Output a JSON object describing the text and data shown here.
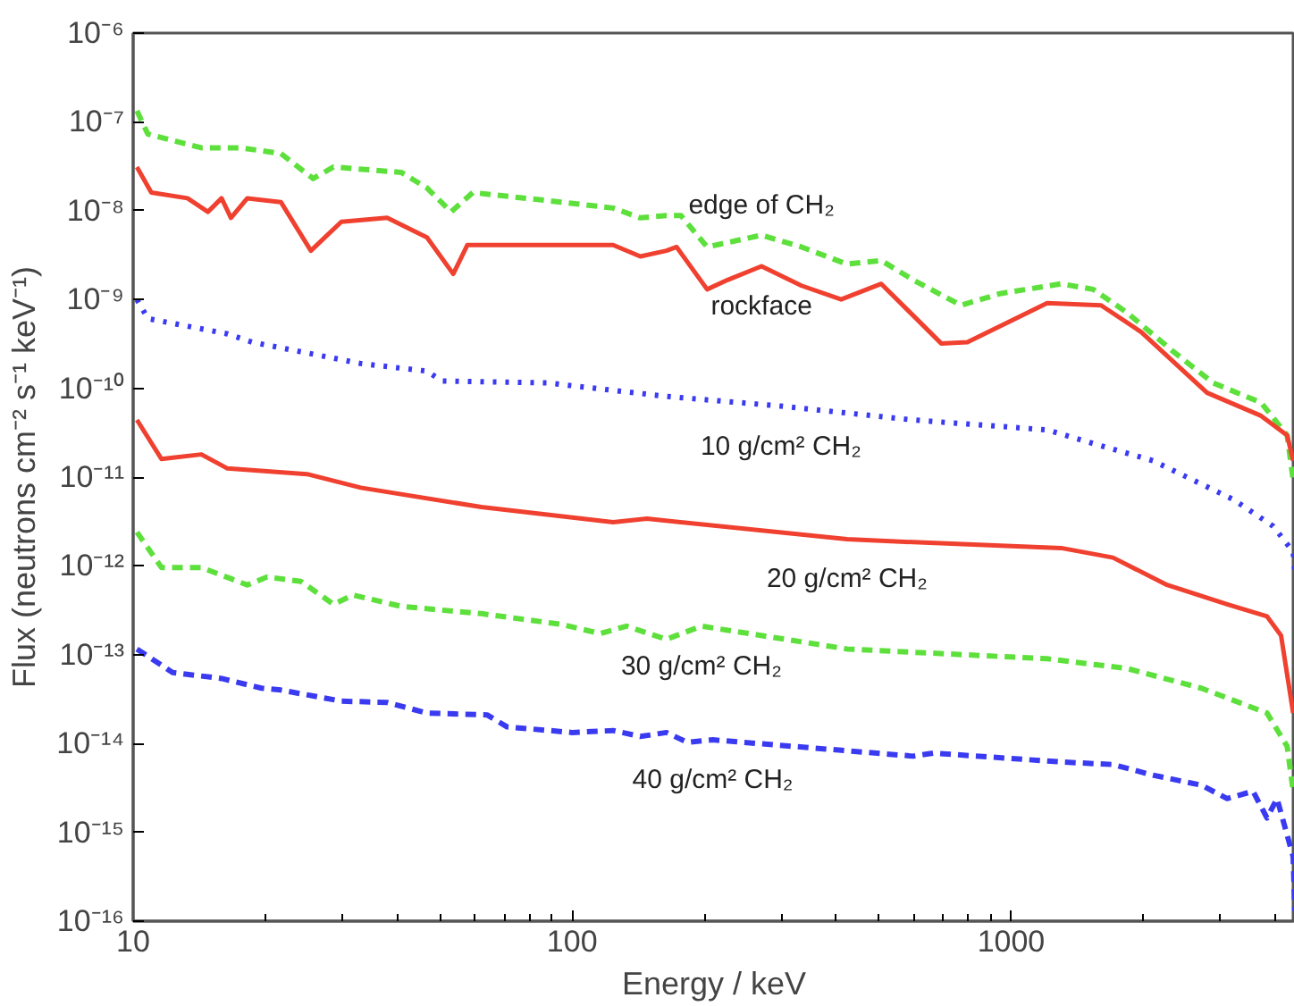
{
  "chart_data": {
    "type": "line",
    "xlabel": "Energy / keV",
    "ylabel": "Flux (neutrons cm⁻² s⁻¹ keV⁻¹)",
    "log": "xy",
    "grid": false,
    "xlim": [
      10,
      4430
    ],
    "xticks": [
      10,
      100,
      1000
    ],
    "ylim": [
      1e-16,
      1e-06
    ],
    "yticks": [
      {
        "value": 1e-06,
        "label": "10⁻⁶"
      },
      {
        "value": 1e-07,
        "label": "10⁻⁷"
      },
      {
        "value": 1e-08,
        "label": "10⁻⁸"
      },
      {
        "value": 1e-09,
        "label": "10⁻⁹"
      },
      {
        "value": 1e-10,
        "label": "10⁻¹⁰"
      },
      {
        "value": 1e-11,
        "label": "10⁻¹¹"
      },
      {
        "value": 1e-12,
        "label": "10⁻¹²"
      },
      {
        "value": 1e-13,
        "label": "10⁻¹³"
      },
      {
        "value": 1e-14,
        "label": "10⁻¹⁴"
      },
      {
        "value": 1e-15,
        "label": "10⁻¹⁵"
      },
      {
        "value": 1e-16,
        "label": "10⁻¹⁶"
      }
    ],
    "series": [
      {
        "name": "edge of CH₂",
        "color": "#5ee03c",
        "line_style": "dashed",
        "x": [
          10.2,
          10.8,
          14.3,
          17.6,
          21.7,
          25.7,
          28.6,
          40.8,
          46.7,
          53,
          59.4,
          94.3,
          124,
          143,
          164,
          177,
          203,
          270,
          333,
          423,
          506,
          598,
          769,
          948,
          1300,
          1538,
          1837,
          2339,
          2884,
          3710,
          4254,
          4390
        ],
        "values": [
          1.33e-07,
          7.3e-08,
          5.1e-08,
          5.1e-08,
          4.4e-08,
          2.3e-08,
          3.1e-08,
          2.7e-08,
          1.8e-08,
          9.7e-09,
          1.6e-08,
          1.25e-08,
          1.07e-08,
          8.3e-09,
          8.8e-09,
          8.8e-09,
          3.9e-09,
          5.3e-09,
          3.9e-09,
          2.5e-09,
          2.75e-09,
          1.66e-09,
          8.6e-10,
          1.17e-09,
          1.5e-09,
          1.3e-09,
          7.1e-10,
          2.6e-10,
          1.15e-10,
          6.9e-11,
          2.95e-11,
          9.3e-12
        ]
      },
      {
        "name": "rockface",
        "color": "#f0402f",
        "line_style": "solid",
        "x": [
          10.2,
          11.0,
          13.3,
          14.8,
          15.9,
          16.7,
          18.2,
          21.7,
          25.4,
          29.8,
          37.9,
          46.7,
          53.6,
          57.7,
          94.3,
          124,
          143,
          164,
          173,
          203,
          226,
          270,
          333,
          410,
          506,
          693,
          795,
          1208,
          1603,
          1978,
          2795,
          3710,
          4254,
          4390
        ],
        "values": [
          3.1e-08,
          1.6e-08,
          1.38e-08,
          9.7e-09,
          1.38e-08,
          8.3e-09,
          1.38e-08,
          1.25e-08,
          3.54e-09,
          7.5e-09,
          8.3e-09,
          5e-09,
          1.94e-09,
          4.1e-09,
          4.1e-09,
          4.1e-09,
          3.05e-09,
          3.54e-09,
          3.9e-09,
          1.3e-09,
          1.66e-09,
          2.37e-09,
          1.43e-09,
          1e-09,
          1.5e-09,
          3.2e-10,
          3.3e-10,
          9.1e-10,
          8.6e-10,
          4.3e-10,
          8.9e-11,
          4.9e-11,
          2.95e-11,
          1.53e-11
        ]
      },
      {
        "name": "10 g/cm² CH₂",
        "color": "#3a3af0",
        "line_style": "dotted",
        "x": [
          10.2,
          10.8,
          16.4,
          18.7,
          33.0,
          46.7,
          50.4,
          87.8,
          164,
          299,
          598,
          1208,
          1490,
          2104,
          3206,
          3953,
          4390,
          4430
        ],
        "values": [
          1e-09,
          6.1e-10,
          4.1e-10,
          3.3e-10,
          1.9e-10,
          1.56e-10,
          1.21e-10,
          1.15e-10,
          8.1e-11,
          6.3e-11,
          4.4e-11,
          3.4e-11,
          2.5e-11,
          1.53e-11,
          5.6e-12,
          2.8e-12,
          1.44e-12,
          8.7e-13
        ]
      },
      {
        "name": "20 g/cm² CH₂",
        "color": "#f0402f",
        "line_style": "solid",
        "x": [
          10.2,
          11.6,
          14.3,
          16.4,
          24.9,
          33.0,
          62.1,
          124,
          148,
          423,
          598,
          1300,
          1706,
          2265,
          3105,
          3828,
          4119,
          4390
        ],
        "values": [
          4.4e-11,
          1.6e-11,
          1.8e-11,
          1.25e-11,
          1.08e-11,
          7.6e-12,
          4.6e-12,
          3.1e-12,
          3.4e-12,
          2e-12,
          1.85e-12,
          1.59e-12,
          1.24e-12,
          6.1e-13,
          3.7e-13,
          2.7e-13,
          1.65e-13,
          2.2e-14
        ]
      },
      {
        "name": "30 g/cm² CH₂",
        "color": "#5ee03c",
        "line_style": "dashed",
        "x": [
          10.2,
          11.6,
          14.3,
          18.2,
          20.2,
          24.1,
          28.6,
          31.7,
          40.8,
          62.1,
          94.3,
          116,
          133,
          164,
          197,
          423,
          1208,
          1837,
          2711,
          3828,
          4254,
          4390
        ],
        "values": [
          2.4e-12,
          9.6e-13,
          9.6e-13,
          6.1e-13,
          7.5e-13,
          6.7e-13,
          3.7e-13,
          4.7e-13,
          3.5e-13,
          2.9e-13,
          2.2e-13,
          1.73e-13,
          2.1e-13,
          1.49e-13,
          2.1e-13,
          1.16e-13,
          9e-14,
          7e-14,
          4.2e-14,
          2.2e-14,
          9.3e-15,
          2.9e-15
        ]
      },
      {
        "name": "40 g/cm² CH₂",
        "color": "#3a3af0",
        "line_style": "dashed",
        "x": [
          10.2,
          12.3,
          15.9,
          19.6,
          21.7,
          29.8,
          37.9,
          46.7,
          64.0,
          71.1,
          100,
          124,
          143,
          164,
          183,
          209,
          598,
          664,
          1300,
          1706,
          2104,
          2711,
          3105,
          3556,
          3828,
          4034,
          4390,
          4430
        ],
        "values": [
          1.16e-13,
          6.3e-14,
          5.4e-14,
          4.2e-14,
          4e-14,
          3e-14,
          2.9e-14,
          2.2e-14,
          2.1e-14,
          1.54e-14,
          1.33e-14,
          1.4e-14,
          1.2e-14,
          1.33e-14,
          1.03e-14,
          1.1e-14,
          7.2e-15,
          7.8e-15,
          6.2e-15,
          5.8e-15,
          4.4e-15,
          3.4e-15,
          2.4e-15,
          2.9e-15,
          1.45e-15,
          2.4e-15,
          5.3e-16,
          1.3e-16
        ]
      }
    ]
  }
}
